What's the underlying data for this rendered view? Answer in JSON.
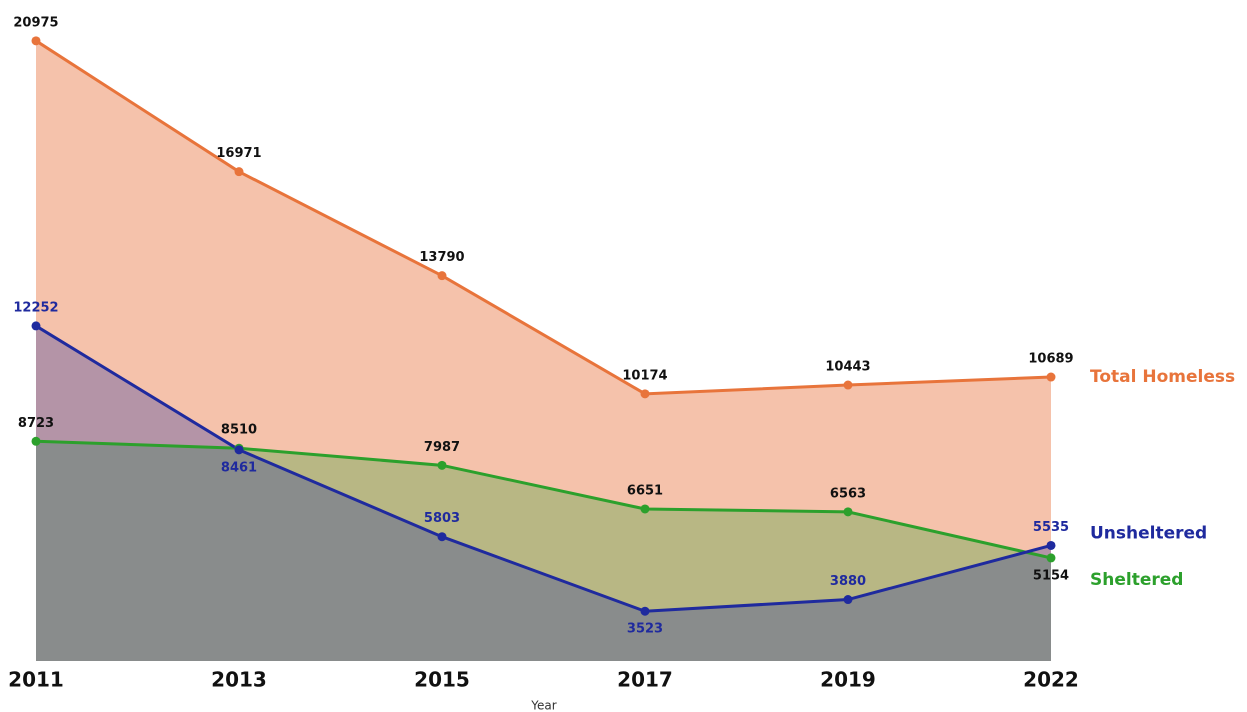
{
  "chart_data": {
    "type": "area",
    "x_label": "Year",
    "categories": [
      "2011",
      "2013",
      "2015",
      "2017",
      "2019",
      "2022"
    ],
    "series": [
      {
        "name": "Total Homeless",
        "color": "#e8743b",
        "values": [
          20975,
          16971,
          13790,
          10174,
          10443,
          10689
        ]
      },
      {
        "name": "Sheltered",
        "color": "#2ca02c",
        "values": [
          8723,
          8510,
          7987,
          6651,
          6563,
          5154
        ]
      },
      {
        "name": "Unsheltered",
        "color": "#1f2a9e",
        "values": [
          12252,
          8461,
          5803,
          3523,
          3880,
          5535
        ]
      }
    ],
    "ylim": [
      2000,
      21000
    ]
  }
}
